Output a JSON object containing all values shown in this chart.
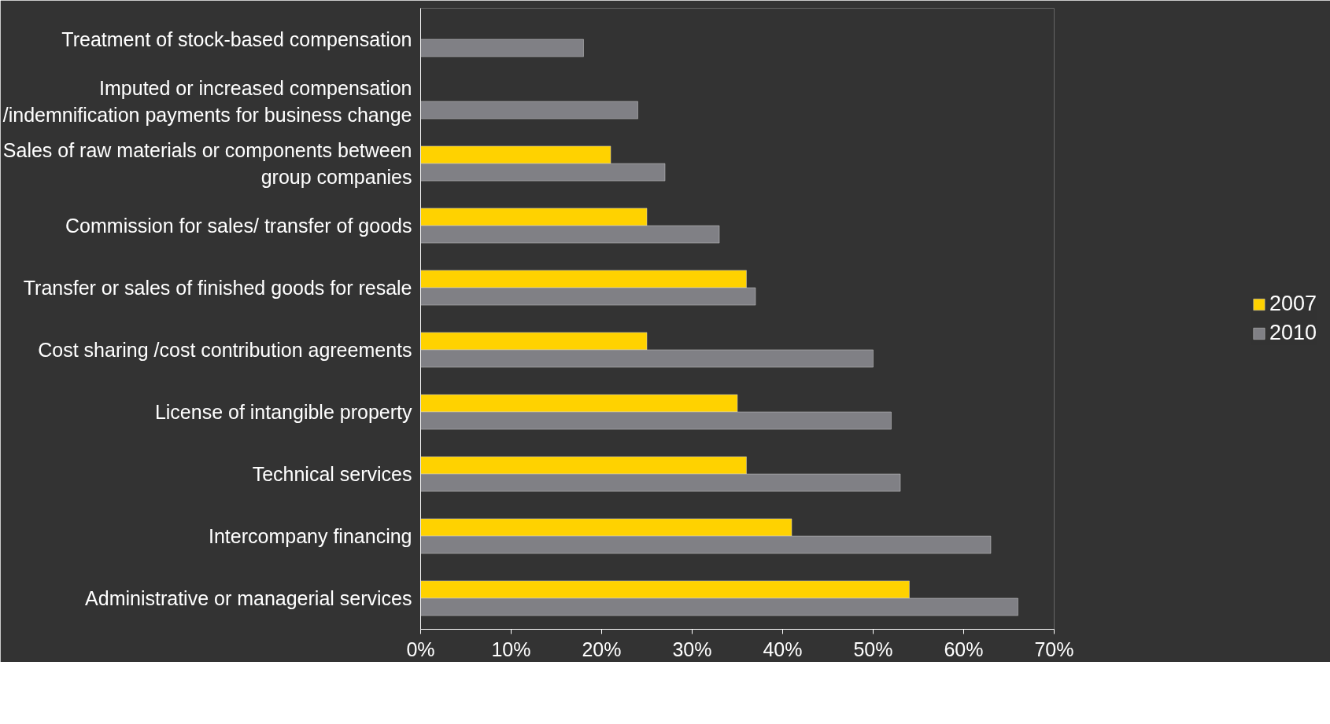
{
  "chart_data": {
    "type": "bar",
    "orientation": "horizontal",
    "categories": [
      "Treatment of stock-based compensation",
      "Imputed or increased compensation\n/indemnification payments for business change",
      "Sales of raw materials or components between\ngroup companies",
      "Commission for sales/ transfer of goods",
      "Transfer or sales of finished goods for resale",
      "Cost sharing /cost contribution agreements",
      "License of intangible property",
      "Technical services",
      "Intercompany financing",
      "Administrative or managerial services"
    ],
    "series": [
      {
        "name": "2007",
        "color": "#ffd200",
        "values": [
          null,
          null,
          21,
          25,
          36,
          25,
          35,
          36,
          41,
          54
        ]
      },
      {
        "name": "2010",
        "color": "#808085",
        "values": [
          18,
          24,
          27,
          33,
          37,
          50,
          52,
          53,
          63,
          66
        ]
      }
    ],
    "xlim": [
      0,
      70
    ],
    "xticks": [
      {
        "value": 0,
        "label": "0%"
      },
      {
        "value": 10,
        "label": "10%"
      },
      {
        "value": 20,
        "label": "20%"
      },
      {
        "value": 30,
        "label": "30%"
      },
      {
        "value": 40,
        "label": "40%"
      },
      {
        "value": 50,
        "label": "50%"
      },
      {
        "value": 60,
        "label": "60%"
      },
      {
        "value": 70,
        "label": "70%"
      }
    ],
    "grid": false,
    "legend": "right"
  }
}
